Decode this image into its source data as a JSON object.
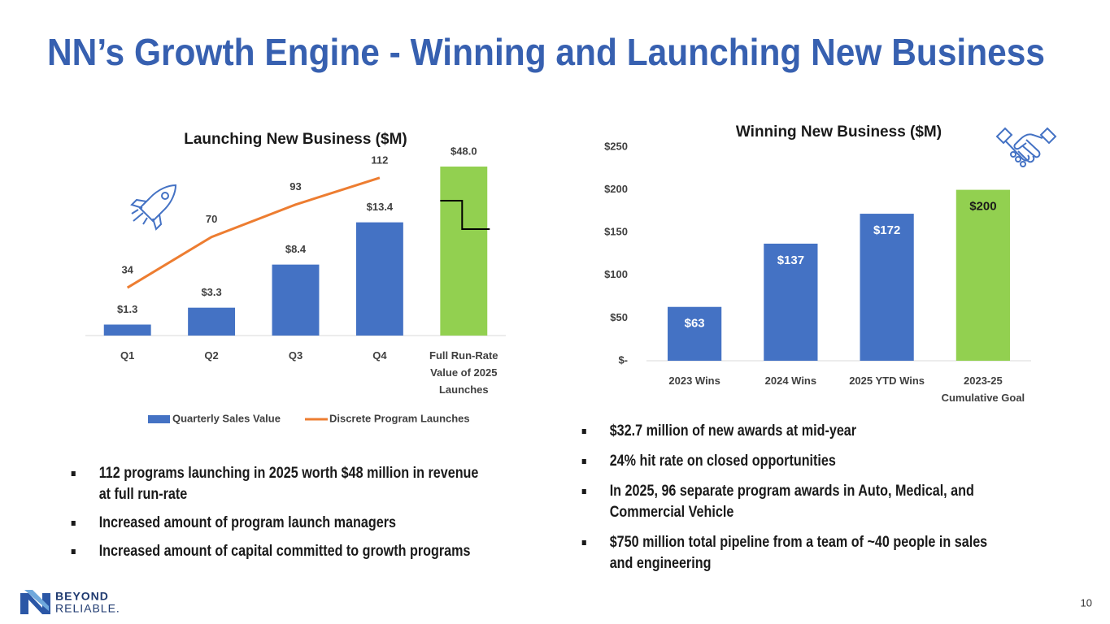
{
  "title": "NN’s Growth Engine - Winning and Launching New Business",
  "chart_data": [
    {
      "type": "bar",
      "title": "Launching New Business ($M)",
      "categories": [
        "Q1",
        "Q2",
        "Q3",
        "Q4",
        "Full Run-Rate Value of 2025 Launches"
      ],
      "series": [
        {
          "name": "Quarterly Sales Value",
          "color": "#4472c4",
          "colors": [
            "#4472c4",
            "#4472c4",
            "#4472c4",
            "#4472c4",
            "#92d050"
          ],
          "values": [
            1.3,
            3.3,
            8.4,
            13.4,
            48.0
          ],
          "value_labels": [
            "$1.3",
            "$3.3",
            "$8.4",
            "$13.4",
            "$48.0"
          ]
        },
        {
          "name": "Discrete Program Launches",
          "type": "line",
          "axis": "y2",
          "color": "#ed7d31",
          "values": [
            34,
            70,
            93,
            112,
            null
          ]
        }
      ],
      "ylim": [
        0,
        20
      ],
      "y2lim": [
        0,
        120
      ],
      "legend": "bottom"
    },
    {
      "type": "bar",
      "title": "Winning New Business ($M)",
      "categories": [
        "2023 Wins",
        "2024 Wins",
        "2025 YTD Wins",
        "2023-25 Cumulative Goal"
      ],
      "values": [
        63,
        137,
        172,
        200
      ],
      "value_labels": [
        "$63",
        "$137",
        "$172",
        "$200"
      ],
      "colors": [
        "#4472c4",
        "#4472c4",
        "#4472c4",
        "#92d050"
      ],
      "ylim": [
        0,
        250
      ],
      "yticks": [
        {
          "value": 0,
          "label": "$-"
        },
        {
          "value": 50,
          "label": "$50"
        },
        {
          "value": 100,
          "label": "$100"
        },
        {
          "value": 150,
          "label": "$150"
        },
        {
          "value": 200,
          "label": "$200"
        },
        {
          "value": 250,
          "label": "$250"
        }
      ]
    }
  ],
  "bullets_left": [
    "112 programs launching in 2025 worth $48 million in revenue at full run-rate",
    "Increased amount of program launch managers",
    "Increased amount of capital committed to growth programs"
  ],
  "bullets_right": [
    "$32.7 million of new awards at mid-year",
    "24% hit rate on closed opportunities",
    "In 2025, 96 separate program awards in Auto, Medical, and Commercial Vehicle",
    "$750 million total pipeline from a team of ~40 people in sales and engineering"
  ],
  "logo": {
    "line1": "BEYOND",
    "line2": "RELIABLE."
  },
  "page_number": "10"
}
